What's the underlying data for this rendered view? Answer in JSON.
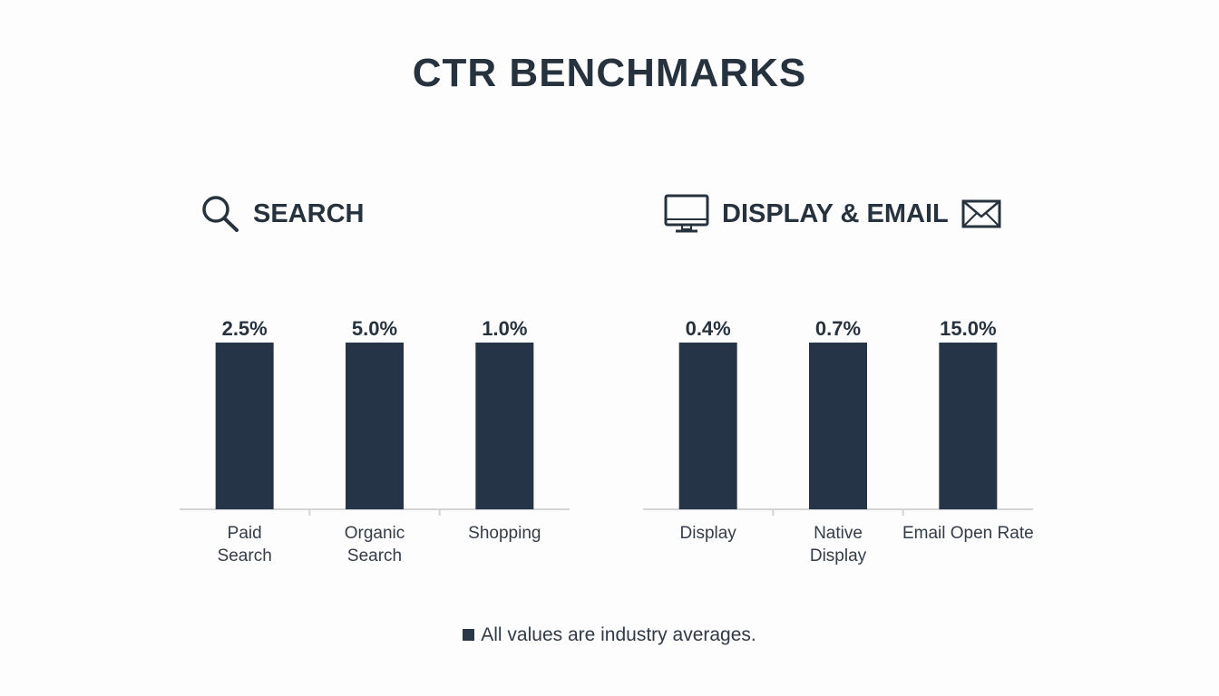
{
  "chart_data": {
    "type": "bar",
    "title": "CTR BENCHMARKS",
    "groups": [
      {
        "name": "SEARCH",
        "icon": "search-icon",
        "categories": [
          "Paid Search",
          "Organic Search",
          "Shopping"
        ],
        "values": [
          2.5,
          5.0,
          1.0
        ],
        "labels": [
          "2.5%",
          "5.0%",
          "1.0%"
        ]
      },
      {
        "name": "DISPLAY & EMAIL",
        "icon": "monitor-icon",
        "icon2": "envelope-icon",
        "categories": [
          "Display",
          "Native Display",
          "Email Open Rate"
        ],
        "values": [
          0.4,
          0.7,
          15.0
        ],
        "labels": [
          "0.4%",
          "0.7%",
          "15.0%"
        ]
      }
    ],
    "unit": "%",
    "bar_color": "#253547",
    "grid": false,
    "footnote": "All values are industry averages."
  }
}
